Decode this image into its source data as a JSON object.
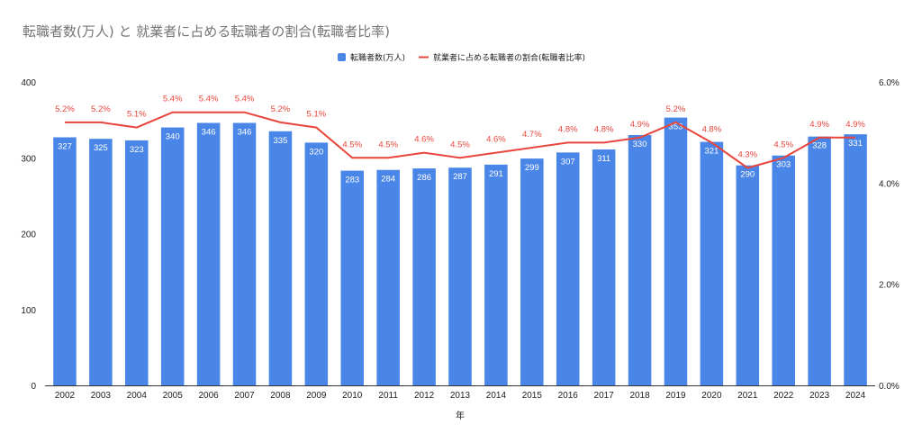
{
  "chart_data": {
    "type": "bar",
    "title": "転職者数(万人) と 就業者に占める転職者の割合(転職者比率)",
    "xlabel": "年",
    "categories": [
      "2002",
      "2003",
      "2004",
      "2005",
      "2006",
      "2007",
      "2008",
      "2009",
      "2010",
      "2011",
      "2012",
      "2013",
      "2014",
      "2015",
      "2016",
      "2017",
      "2018",
      "2019",
      "2020",
      "2021",
      "2022",
      "2023",
      "2024"
    ],
    "series": [
      {
        "name": "転職者数(万人)",
        "type": "bar",
        "axis": "left",
        "color": "#4a86e8",
        "values": [
          327,
          325,
          323,
          340,
          346,
          346,
          335,
          320,
          283,
          284,
          286,
          287,
          291,
          299,
          307,
          311,
          330,
          353,
          321,
          290,
          303,
          328,
          331
        ],
        "labels": [
          "327",
          "325",
          "323",
          "340",
          "346",
          "346",
          "335",
          "320",
          "283",
          "284",
          "286",
          "287",
          "291",
          "299",
          "307",
          "311",
          "330",
          "353",
          "321",
          "290",
          "303",
          "328",
          "331"
        ]
      },
      {
        "name": "就業者に占める転職者の割合(転職者比率)",
        "type": "line",
        "axis": "right",
        "color": "#e8453c",
        "values": [
          5.2,
          5.2,
          5.1,
          5.4,
          5.4,
          5.4,
          5.2,
          5.1,
          4.5,
          4.5,
          4.6,
          4.5,
          4.6,
          4.7,
          4.8,
          4.8,
          4.9,
          5.2,
          4.8,
          4.3,
          4.5,
          4.9,
          4.9
        ],
        "labels": [
          "5.2%",
          "5.2%",
          "5.1%",
          "5.4%",
          "5.4%",
          "5.4%",
          "5.2%",
          "5.1%",
          "4.5%",
          "4.5%",
          "4.6%",
          "4.5%",
          "4.6%",
          "4.7%",
          "4.8%",
          "4.8%",
          "4.9%",
          "5.2%",
          "4.8%",
          "4.3%",
          "4.5%",
          "4.9%",
          "4.9%"
        ]
      }
    ],
    "y_left": {
      "min": 0,
      "max": 400,
      "ticks": [
        "0",
        "100",
        "200",
        "300",
        "400"
      ]
    },
    "y_right": {
      "min": 0,
      "max": 6,
      "ticks": [
        "0.0%",
        "2.0%",
        "4.0%",
        "6.0%"
      ]
    },
    "grid": false,
    "legend_position": "top-center"
  }
}
